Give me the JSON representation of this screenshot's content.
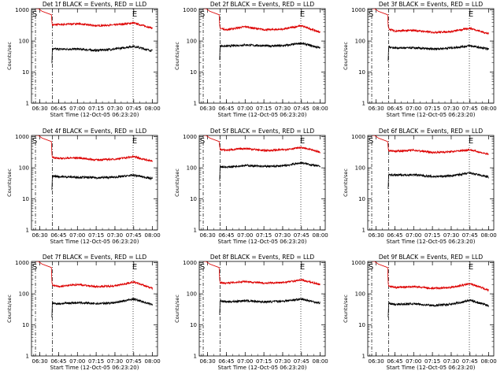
{
  "colors": {
    "events": "#000000",
    "lld": "#dd0000",
    "axis": "#000000"
  },
  "shared_axes": {
    "xlabel": "Start Time (12-Oct-05 06:23:20)",
    "ylabel": "Counts/sec",
    "x_ticks": [
      "06:30",
      "06:45",
      "07:00",
      "07:15",
      "07:30",
      "07:45",
      "08:00"
    ],
    "y_ticks": [
      "1",
      "10",
      "100",
      "1000"
    ],
    "y_scale": "log",
    "ylim": [
      1,
      1100
    ],
    "xlim": [
      "06:23:20",
      "08:04:00"
    ],
    "markers": {
      "start": {
        "label": "S",
        "time": "06:26:30",
        "style": "dash-dot"
      },
      "dash": {
        "time": "06:40:00",
        "style": "dash-dot"
      },
      "end": {
        "label": "E",
        "time": "07:44:30",
        "style": "dotted"
      }
    }
  },
  "chart_data": [
    {
      "type": "line",
      "title": "Det 1f BLACK = Events, RED = LLD",
      "series": [
        {
          "key": "lld",
          "x": [
            "06:40",
            "06:45",
            "07:00",
            "07:15",
            "07:30",
            "07:45",
            "08:00"
          ],
          "values": [
            330,
            340,
            360,
            310,
            330,
            380,
            260
          ]
        },
        {
          "key": "events",
          "x": [
            "06:40",
            "06:45",
            "07:00",
            "07:15",
            "07:30",
            "07:45",
            "08:00"
          ],
          "values": [
            55,
            55,
            55,
            50,
            55,
            68,
            48
          ]
        }
      ]
    },
    {
      "type": "line",
      "title": "Det 2f BLACK = Events, RED = LLD",
      "series": [
        {
          "key": "lld",
          "x": [
            "06:40",
            "06:45",
            "07:00",
            "07:15",
            "07:30",
            "07:45",
            "08:00"
          ],
          "values": [
            260,
            230,
            290,
            230,
            240,
            310,
            190
          ]
        },
        {
          "key": "events",
          "x": [
            "06:40",
            "06:45",
            "07:00",
            "07:15",
            "07:30",
            "07:45",
            "08:00"
          ],
          "values": [
            70,
            68,
            75,
            70,
            70,
            85,
            60
          ]
        }
      ]
    },
    {
      "type": "line",
      "title": "Det 3f BLACK = Events, RED = LLD",
      "series": [
        {
          "key": "lld",
          "x": [
            "06:40",
            "06:45",
            "07:00",
            "07:15",
            "07:30",
            "07:45",
            "08:00"
          ],
          "values": [
            250,
            210,
            220,
            190,
            200,
            260,
            170
          ]
        },
        {
          "key": "events",
          "x": [
            "06:40",
            "06:45",
            "07:00",
            "07:15",
            "07:30",
            "07:45",
            "08:00"
          ],
          "values": [
            65,
            60,
            60,
            55,
            60,
            70,
            55
          ]
        }
      ]
    },
    {
      "type": "line",
      "title": "Det 4f BLACK = Events, RED = LLD",
      "series": [
        {
          "key": "lld",
          "x": [
            "06:40",
            "06:45",
            "07:00",
            "07:15",
            "07:30",
            "07:45",
            "08:00"
          ],
          "values": [
            220,
            200,
            210,
            180,
            190,
            230,
            160
          ]
        },
        {
          "key": "events",
          "x": [
            "06:40",
            "06:45",
            "07:00",
            "07:15",
            "07:30",
            "07:45",
            "08:00"
          ],
          "values": [
            55,
            52,
            50,
            48,
            50,
            58,
            45
          ]
        }
      ]
    },
    {
      "type": "line",
      "title": "Det 5f BLACK = Events, RED = LLD",
      "series": [
        {
          "key": "lld",
          "x": [
            "06:40",
            "06:45",
            "07:00",
            "07:15",
            "07:30",
            "07:45",
            "08:00"
          ],
          "values": [
            390,
            370,
            420,
            360,
            380,
            450,
            320
          ]
        },
        {
          "key": "events",
          "x": [
            "06:40",
            "06:45",
            "07:00",
            "07:15",
            "07:30",
            "07:45",
            "08:00"
          ],
          "values": [
            110,
            105,
            120,
            110,
            115,
            145,
            110
          ]
        }
      ]
    },
    {
      "type": "line",
      "title": "Det 6f BLACK = Events, RED = LLD",
      "series": [
        {
          "key": "lld",
          "x": [
            "06:40",
            "06:45",
            "07:00",
            "07:15",
            "07:30",
            "07:45",
            "08:00"
          ],
          "values": [
            360,
            340,
            370,
            310,
            330,
            380,
            270
          ]
        },
        {
          "key": "events",
          "x": [
            "06:40",
            "06:45",
            "07:00",
            "07:15",
            "07:30",
            "07:45",
            "08:00"
          ],
          "values": [
            60,
            58,
            60,
            52,
            55,
            68,
            50
          ]
        }
      ]
    },
    {
      "type": "line",
      "title": "Det 7f BLACK = Events, RED = LLD",
      "series": [
        {
          "key": "lld",
          "x": [
            "06:40",
            "06:45",
            "07:00",
            "07:15",
            "07:30",
            "07:45",
            "08:00"
          ],
          "values": [
            190,
            170,
            200,
            170,
            180,
            240,
            150
          ]
        },
        {
          "key": "events",
          "x": [
            "06:40",
            "06:45",
            "07:00",
            "07:15",
            "07:30",
            "07:45",
            "08:00"
          ],
          "values": [
            50,
            48,
            52,
            48,
            52,
            68,
            45
          ]
        }
      ]
    },
    {
      "type": "line",
      "title": "Det 8f BLACK = Events, RED = LLD",
      "series": [
        {
          "key": "lld",
          "x": [
            "06:40",
            "06:45",
            "07:00",
            "07:15",
            "07:30",
            "07:45",
            "08:00"
          ],
          "values": [
            230,
            220,
            250,
            220,
            230,
            280,
            200
          ]
        },
        {
          "key": "events",
          "x": [
            "06:40",
            "06:45",
            "07:00",
            "07:15",
            "07:30",
            "07:45",
            "08:00"
          ],
          "values": [
            60,
            55,
            60,
            55,
            58,
            68,
            50
          ]
        }
      ]
    },
    {
      "type": "line",
      "title": "Det 9f BLACK = Events, RED = LLD",
      "series": [
        {
          "key": "lld",
          "x": [
            "06:40",
            "06:45",
            "07:00",
            "07:15",
            "07:30",
            "07:45",
            "08:00"
          ],
          "values": [
            180,
            160,
            170,
            150,
            160,
            210,
            130
          ]
        },
        {
          "key": "events",
          "x": [
            "06:40",
            "06:45",
            "07:00",
            "07:15",
            "07:30",
            "07:45",
            "08:00"
          ],
          "values": [
            50,
            45,
            48,
            42,
            46,
            62,
            42
          ]
        }
      ]
    }
  ]
}
